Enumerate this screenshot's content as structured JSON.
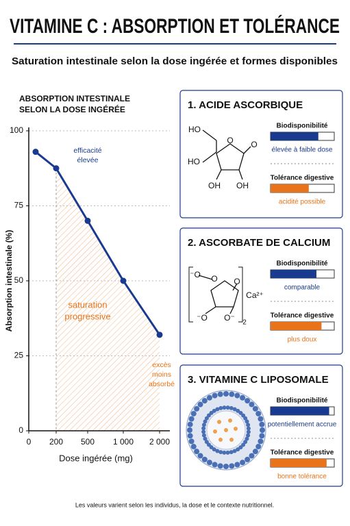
{
  "title": "VITAMINE C : ABSORPTION ET TOLÉRANCE",
  "subtitle": "Saturation intestinale selon la dose ingérée et formes disponibles",
  "chart_data": {
    "type": "line",
    "title": [
      "ABSORPTION INTESTINALE",
      "SELON LA DOSE INGÉRÉE"
    ],
    "x": [
      50,
      200,
      500,
      1000,
      2000
    ],
    "values": [
      93,
      87.5,
      70,
      50,
      32
    ],
    "color": "#1a3a8f",
    "xlabel": "Dose ingérée (mg)",
    "ylabel": "Absorption intestinale (%)",
    "xlim": [
      0,
      2000
    ],
    "xticks": [
      0,
      200,
      500,
      {
        "value": 1000,
        "label": "1 000"
      },
      {
        "value": 2000,
        "label": "2 000"
      }
    ],
    "ylim": [
      0,
      100
    ],
    "yticks": [
      0,
      25,
      50,
      75,
      100
    ],
    "grid": true,
    "annotations": [
      {
        "lines": [
          "efficacité",
          "élevée"
        ],
        "color": "#1a3a8f"
      },
      {
        "lines": [
          "saturation",
          "progressive"
        ],
        "color": "#e8731a"
      },
      {
        "lines": [
          "excès",
          "moins",
          "absorbé"
        ],
        "color": "#e8731a"
      }
    ]
  },
  "panels": [
    {
      "title": "1. ACIDE ASCORBIQUE",
      "labels": [
        "HO",
        "HO",
        "O",
        "O",
        "OH",
        "OH"
      ],
      "bioavailability": {
        "label": "Biodisponibilité",
        "level": 0.75,
        "note": "élevée à faible dose"
      },
      "tolerance": {
        "label": "Tolérance digestive",
        "level": 0.6,
        "note": "acidité possible"
      }
    },
    {
      "title": "2. ASCORBATE DE CALCIUM",
      "labels": [
        "⁻O",
        "O",
        "O",
        "⁻O",
        "O⁻",
        "Ca²⁺",
        "2"
      ],
      "bioavailability": {
        "label": "Biodisponibilité",
        "level": 0.72,
        "note": "comparable"
      },
      "tolerance": {
        "label": "Tolérance digestive",
        "level": 0.8,
        "note": "plus doux"
      }
    },
    {
      "title": "3. VITAMINE C LIPOSOMALE",
      "labels": [],
      "bioavailability": {
        "label": "Biodisponibilité",
        "level": 0.92,
        "note": "potentiellement accrue"
      },
      "tolerance": {
        "label": "Tolérance digestive",
        "level": 0.88,
        "note": "bonne tolérance"
      }
    }
  ],
  "footer": "Les valeurs varient selon les individus, la dose et le contexte nutritionnel."
}
